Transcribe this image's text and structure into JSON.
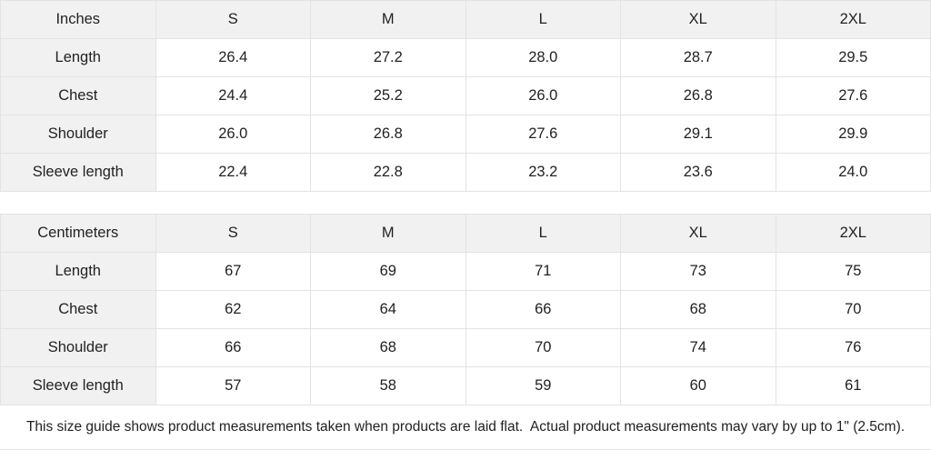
{
  "colors": {
    "header_bg": "#f1f1f2",
    "border": "#e3e3e3",
    "text": "#222222",
    "cell_bg": "#ffffff"
  },
  "tables": [
    {
      "unit_header": "Inches",
      "size_headers": [
        "S",
        "M",
        "L",
        "XL",
        "2XL"
      ],
      "rows": [
        {
          "label": "Length",
          "values": [
            "26.4",
            "27.2",
            "28.0",
            "28.7",
            "29.5"
          ]
        },
        {
          "label": "Chest",
          "values": [
            "24.4",
            "25.2",
            "26.0",
            "26.8",
            "27.6"
          ]
        },
        {
          "label": "Shoulder",
          "values": [
            "26.0",
            "26.8",
            "27.6",
            "29.1",
            "29.9"
          ]
        },
        {
          "label": "Sleeve length",
          "values": [
            "22.4",
            "22.8",
            "23.2",
            "23.6",
            "24.0"
          ]
        }
      ]
    },
    {
      "unit_header": "Centimeters",
      "size_headers": [
        "S",
        "M",
        "L",
        "XL",
        "2XL"
      ],
      "rows": [
        {
          "label": "Length",
          "values": [
            "67",
            "69",
            "71",
            "73",
            "75"
          ]
        },
        {
          "label": "Chest",
          "values": [
            "62",
            "64",
            "66",
            "68",
            "70"
          ]
        },
        {
          "label": "Shoulder",
          "values": [
            "66",
            "68",
            "70",
            "74",
            "76"
          ]
        },
        {
          "label": "Sleeve length",
          "values": [
            "57",
            "58",
            "59",
            "60",
            "61"
          ]
        }
      ]
    }
  ],
  "footer_note": "This size guide shows product measurements taken when products are laid flat.  Actual product measurements may vary by up to 1\" (2.5cm)."
}
